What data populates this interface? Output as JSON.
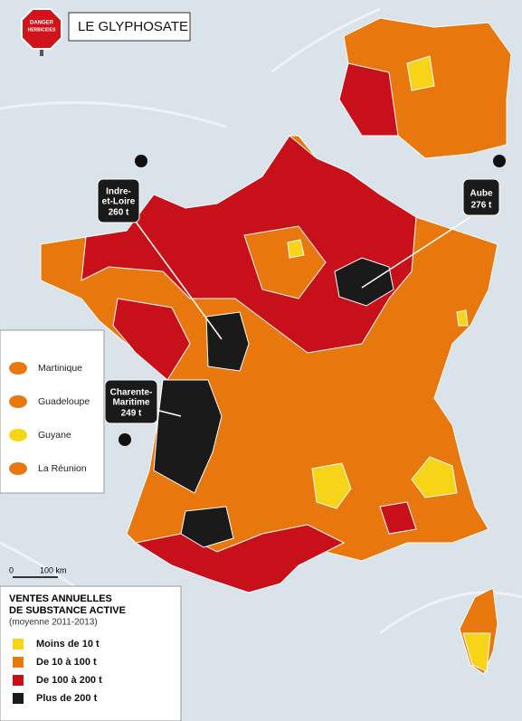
{
  "header": {
    "sign": [
      "DANGER",
      "HERBICIDES"
    ],
    "title": "LE GLYPHOSATE"
  },
  "callouts": [
    {
      "name": [
        "Indre-",
        "et-Loire"
      ],
      "value": "260 t"
    },
    {
      "name": [
        "Aube"
      ],
      "value": "276 t"
    },
    {
      "name": [
        "Charente-",
        "Maritime"
      ],
      "value": "249 t"
    }
  ],
  "overseas": [
    "Martinique",
    "Guadeloupe",
    "Guyane",
    "La Réunion"
  ],
  "scale": {
    "start": "0",
    "end": "100 km"
  },
  "legend": {
    "title": [
      "VENTES ANNUELLES",
      "DE SUBSTANCE ACTIVE"
    ],
    "subtitle": "(moyenne 2011-2013)",
    "items": [
      {
        "label": "Moins de 10 t",
        "color": "#f7d417"
      },
      {
        "label": "De 10 à 100 t",
        "color": "#e8780e"
      },
      {
        "label": "De 100 à 200 t",
        "color": "#c8101b"
      },
      {
        "label": "Plus de 200 t",
        "color": "#1a1a1a"
      }
    ]
  }
}
